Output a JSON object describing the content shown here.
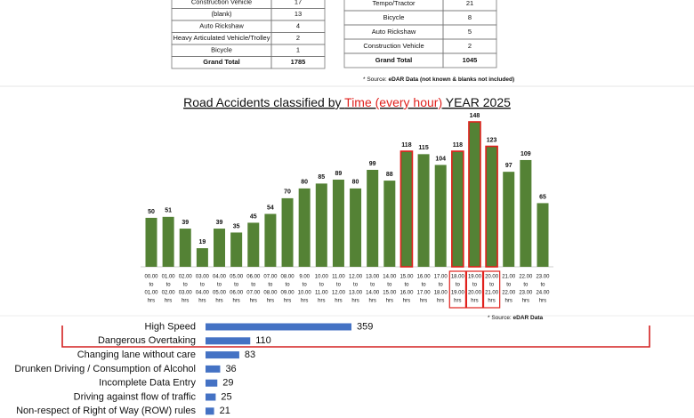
{
  "tables": [
    {
      "rows": [
        [
          "Construction Vehicle",
          17
        ],
        [
          "(blank)",
          13
        ],
        [
          "Auto Rickshaw",
          4
        ],
        [
          "Heavy Articulated Vehicle/Trolley",
          2
        ],
        [
          "Bicycle",
          1
        ],
        [
          "Grand Total",
          1785
        ]
      ]
    },
    {
      "rows": [
        [
          "Tempo/Tractor",
          21
        ],
        [
          "Bicycle",
          8
        ],
        [
          "Auto Rickshaw",
          5
        ],
        [
          "Construction Vehicle",
          2
        ],
        [
          "Grand Total",
          1045
        ]
      ],
      "note": [
        "* Source:  ",
        "eDAR Data (not known & blanks not included)"
      ]
    }
  ],
  "chart_data": [
    {
      "type": "bar",
      "title": [
        "Road Accidents classified by ",
        "Time (every hour)",
        "  YEAR 2025"
      ],
      "title_colors": [
        "#111111",
        "#e0201c",
        "#111111"
      ],
      "categories": [
        [
          "00.00",
          "to",
          "01.00",
          "hrs"
        ],
        [
          "01.00",
          "to",
          "02.00",
          "hrs"
        ],
        [
          "02.00",
          "to",
          "03.00",
          "hrs"
        ],
        [
          "03.00",
          "to",
          "04.00",
          "hrs"
        ],
        [
          "04.00",
          "to",
          "05.00",
          "hrs"
        ],
        [
          "05.00",
          "to",
          "06.00",
          "hrs"
        ],
        [
          "06.00",
          "to",
          "07.00",
          "hrs"
        ],
        [
          "07.00",
          "to",
          "08.00",
          "hrs"
        ],
        [
          "08.00",
          "to",
          "09.00",
          "hrs"
        ],
        [
          "9.00",
          "to",
          "10.00",
          "hrs"
        ],
        [
          "10.00",
          "to",
          "11.00",
          "hrs"
        ],
        [
          "11.00",
          "to",
          "12.00",
          "hrs"
        ],
        [
          "12.00",
          "to",
          "13.00",
          "hrs"
        ],
        [
          "13.00",
          "to",
          "14.00",
          "hrs"
        ],
        [
          "14.00",
          "to",
          "15.00",
          "hrs"
        ],
        [
          "15.00",
          "to",
          "16.00",
          "hrs"
        ],
        [
          "16.00",
          "to",
          "17.00",
          "hrs"
        ],
        [
          "17.00",
          "to",
          "18.00",
          "hrs"
        ],
        [
          "18.00",
          "to",
          "19.00",
          "hrs"
        ],
        [
          "19.00",
          "to",
          "20.00",
          "hrs"
        ],
        [
          "20.00",
          "to",
          "21.00",
          "hrs"
        ],
        [
          "21.00",
          "to",
          "22.00",
          "hrs"
        ],
        [
          "22.00",
          "to",
          "23.00",
          "hrs"
        ],
        [
          "23.00",
          "to",
          "24.00",
          "hrs"
        ]
      ],
      "values": [
        50,
        51,
        39,
        19,
        39,
        35,
        45,
        54,
        70,
        80,
        85,
        89,
        80,
        99,
        88,
        118,
        115,
        104,
        118,
        148,
        123,
        97,
        109,
        65
      ],
      "color": "#548235",
      "highlight_color": "#e0201c",
      "highlighted": [
        15,
        18,
        19,
        20
      ],
      "label_boxed": [
        18,
        19,
        20
      ],
      "note": [
        "* Source:  ",
        "eDAR Data"
      ]
    },
    {
      "type": "hbar",
      "categories": [
        "High Speed",
        "Dangerous Overtaking",
        "Changing lane without care",
        "Drunken Driving / Consumption of Alcohol",
        "Incomplete Data Entry",
        "Driving against flow of traffic",
        "Non-respect of Right of Way (ROW) rules"
      ],
      "values": [
        359,
        110,
        83,
        36,
        29,
        25,
        21
      ],
      "color": "#4472c4"
    }
  ]
}
